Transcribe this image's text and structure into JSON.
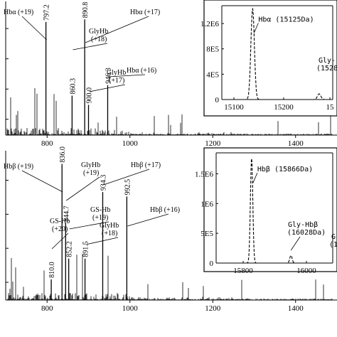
{
  "chart_data": [
    {
      "type": "line",
      "panel": "top",
      "xlim": [
        700,
        1500
      ],
      "x_ticks": [
        "800",
        "1000",
        "1200",
        "1400"
      ],
      "peak_labels": [
        {
          "x": 797.2,
          "y": 0.86,
          "text": "797.2"
        },
        {
          "x": 890.8,
          "y": 0.88,
          "text": "890.8"
        },
        {
          "x": 860.3,
          "y": 0.3,
          "text": "860.3"
        },
        {
          "x": 900.0,
          "y": 0.23,
          "text": "900.0"
        },
        {
          "x": 946.3,
          "y": 0.38,
          "text": "946.3"
        }
      ],
      "annotations": [
        {
          "text": "Hbα (+19)",
          "x": 797.2
        },
        {
          "text": "Hbα (+17)",
          "x": 890.8
        },
        {
          "text": "GlyHb",
          "text2": "(+18)",
          "x": 860.3
        },
        {
          "text": "GlyHb",
          "text2": "(+17)",
          "x": 900.0
        },
        {
          "text": "Hbα (+16)",
          "x": 946.3
        }
      ],
      "inset": {
        "xlim": [
          15050,
          15320
        ],
        "x_ticks": [
          "15100",
          "15200",
          "15"
        ],
        "y_ticks": [
          "0",
          "4E5",
          "8E5",
          "1.2E6"
        ],
        "ylim": [
          0,
          1500000
        ],
        "peaks": [
          {
            "center": 15125,
            "height": 1450000,
            "width": 6
          },
          {
            "center": 15287,
            "height": 90000,
            "width": 6
          }
        ],
        "labels": [
          "Hbα (15125Da)",
          "Gly-",
          "(1528"
        ]
      }
    },
    {
      "type": "line",
      "panel": "bottom",
      "xlim": [
        700,
        1500
      ],
      "x_ticks": [
        "800",
        "1000",
        "1200",
        "1400"
      ],
      "peak_labels": [
        {
          "x": 836.0,
          "y": 0.92,
          "text": "836.0"
        },
        {
          "x": 934.3,
          "y": 0.73,
          "text": "934.3"
        },
        {
          "x": 992.5,
          "y": 0.7,
          "text": "992.5"
        },
        {
          "x": 844.7,
          "y": 0.52,
          "text": "844.7"
        },
        {
          "x": 852.2,
          "y": 0.28,
          "text": "852.2"
        },
        {
          "x": 891.5,
          "y": 0.28,
          "text": "891.5"
        },
        {
          "x": 810.0,
          "y": 0.14,
          "text": "810.0"
        }
      ],
      "annotations": [
        {
          "text": "Hbβ (+19)",
          "x": 836.0
        },
        {
          "text": "GlyHb",
          "text2": "(+19)",
          "x": 844.7
        },
        {
          "text": "Hbβ (+17)",
          "x": 934.3
        },
        {
          "text": "GS-Hb",
          "text2": "(+19)",
          "x": 852.2
        },
        {
          "text": "Hbβ (+16)",
          "x": 992.5
        },
        {
          "text": "GS-Hb",
          "text2": "(+20)",
          "x": 810.0
        },
        {
          "text": "GlyHb",
          "text2": "(+18)",
          "x": 891.5
        }
      ],
      "inset": {
        "xlim": [
          15720,
          16200
        ],
        "x_ticks": [
          "15800",
          "16000"
        ],
        "y_ticks": [
          "0",
          "5E5",
          "1E6",
          "1.5E6"
        ],
        "ylim": [
          0,
          1900000
        ],
        "peaks": [
          {
            "center": 15866,
            "height": 1800000,
            "width": 7
          },
          {
            "center": 16028,
            "height": 130000,
            "width": 7
          }
        ],
        "labels": [
          "Hbβ (15866Da)",
          "Gly-Hbβ",
          "(16028Da)",
          "G",
          "(1"
        ]
      }
    }
  ]
}
